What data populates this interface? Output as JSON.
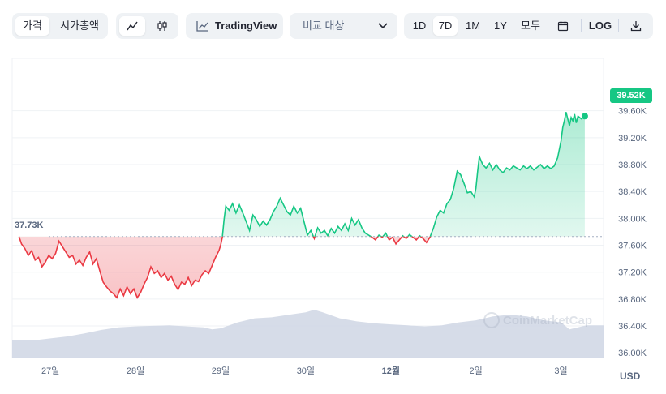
{
  "toolbar": {
    "type_tabs": [
      "가격",
      "시가총액"
    ],
    "active_type": "가격",
    "style_icons": [
      "line-chart-icon",
      "candlestick-icon"
    ],
    "tradingview_label": "TradingView",
    "compare_label": "비교 대상",
    "ranges": [
      "1D",
      "7D",
      "1M",
      "1Y",
      "모두"
    ],
    "active_range": "7D",
    "log_label": "LOG"
  },
  "price_tag": "39.52K",
  "ref_tag": "37.73K",
  "currency": "USD",
  "watermark": "CoinMarketCap",
  "colors": {
    "up": "#16c784",
    "down": "#ea3943",
    "volume": "#cfd6e4",
    "accent": "#16c784"
  },
  "chart_data": {
    "type": "line",
    "x_tick_labels": [
      "27일",
      "28일",
      "29일",
      "30일",
      "12월",
      "2일",
      "3일"
    ],
    "x_range": [
      26.55,
      33.5
    ],
    "y_ticks": [
      "36.00K",
      "36.40K",
      "36.80K",
      "37.20K",
      "37.60K",
      "38.00K",
      "38.40K",
      "38.80K",
      "39.20K",
      "39.60K"
    ],
    "ylim": [
      35.93,
      40.38
    ],
    "reference_price": 37.73,
    "last_price": 39.52,
    "price_series": [
      [
        26.63,
        37.73
      ],
      [
        26.66,
        37.62
      ],
      [
        26.7,
        37.55
      ],
      [
        26.74,
        37.45
      ],
      [
        26.78,
        37.52
      ],
      [
        26.82,
        37.38
      ],
      [
        26.86,
        37.42
      ],
      [
        26.9,
        37.28
      ],
      [
        26.94,
        37.35
      ],
      [
        26.98,
        37.45
      ],
      [
        27.02,
        37.4
      ],
      [
        27.06,
        37.48
      ],
      [
        27.1,
        37.66
      ],
      [
        27.14,
        37.58
      ],
      [
        27.18,
        37.5
      ],
      [
        27.22,
        37.42
      ],
      [
        27.26,
        37.45
      ],
      [
        27.3,
        37.32
      ],
      [
        27.34,
        37.38
      ],
      [
        27.38,
        37.3
      ],
      [
        27.42,
        37.42
      ],
      [
        27.46,
        37.5
      ],
      [
        27.5,
        37.32
      ],
      [
        27.54,
        37.4
      ],
      [
        27.58,
        37.22
      ],
      [
        27.62,
        37.05
      ],
      [
        27.66,
        36.98
      ],
      [
        27.7,
        36.92
      ],
      [
        27.74,
        36.88
      ],
      [
        27.78,
        36.82
      ],
      [
        27.82,
        36.95
      ],
      [
        27.86,
        36.85
      ],
      [
        27.9,
        36.98
      ],
      [
        27.94,
        36.88
      ],
      [
        27.98,
        36.95
      ],
      [
        28.02,
        36.82
      ],
      [
        28.06,
        36.9
      ],
      [
        28.1,
        37.02
      ],
      [
        28.14,
        37.12
      ],
      [
        28.18,
        37.28
      ],
      [
        28.22,
        37.18
      ],
      [
        28.26,
        37.22
      ],
      [
        28.3,
        37.12
      ],
      [
        28.34,
        37.18
      ],
      [
        28.38,
        37.08
      ],
      [
        28.42,
        37.14
      ],
      [
        28.46,
        37.02
      ],
      [
        28.5,
        36.94
      ],
      [
        28.54,
        37.05
      ],
      [
        28.58,
        37.02
      ],
      [
        28.62,
        37.12
      ],
      [
        28.66,
        37.0
      ],
      [
        28.7,
        37.08
      ],
      [
        28.74,
        37.06
      ],
      [
        28.78,
        37.16
      ],
      [
        28.82,
        37.22
      ],
      [
        28.86,
        37.18
      ],
      [
        28.9,
        37.3
      ],
      [
        28.94,
        37.42
      ],
      [
        28.98,
        37.52
      ],
      [
        29.0,
        37.6
      ],
      [
        29.02,
        37.72
      ],
      [
        29.04,
        37.98
      ],
      [
        29.06,
        38.18
      ],
      [
        29.1,
        38.12
      ],
      [
        29.14,
        38.22
      ],
      [
        29.18,
        38.08
      ],
      [
        29.22,
        38.2
      ],
      [
        29.26,
        38.08
      ],
      [
        29.3,
        37.95
      ],
      [
        29.34,
        37.82
      ],
      [
        29.38,
        38.05
      ],
      [
        29.42,
        37.98
      ],
      [
        29.46,
        37.88
      ],
      [
        29.5,
        37.96
      ],
      [
        29.54,
        37.9
      ],
      [
        29.58,
        37.98
      ],
      [
        29.62,
        38.1
      ],
      [
        29.66,
        38.18
      ],
      [
        29.7,
        38.3
      ],
      [
        29.74,
        38.2
      ],
      [
        29.78,
        38.1
      ],
      [
        29.82,
        38.05
      ],
      [
        29.86,
        38.18
      ],
      [
        29.9,
        38.08
      ],
      [
        29.94,
        38.15
      ],
      [
        29.98,
        37.95
      ],
      [
        30.02,
        37.75
      ],
      [
        30.06,
        37.82
      ],
      [
        30.1,
        37.7
      ],
      [
        30.14,
        37.86
      ],
      [
        30.18,
        37.78
      ],
      [
        30.22,
        37.82
      ],
      [
        30.26,
        37.74
      ],
      [
        30.3,
        37.85
      ],
      [
        30.34,
        37.78
      ],
      [
        30.38,
        37.88
      ],
      [
        30.42,
        37.82
      ],
      [
        30.46,
        37.92
      ],
      [
        30.5,
        37.82
      ],
      [
        30.54,
        38.0
      ],
      [
        30.58,
        37.9
      ],
      [
        30.62,
        37.98
      ],
      [
        30.66,
        37.86
      ],
      [
        30.7,
        37.78
      ],
      [
        30.74,
        37.75
      ],
      [
        30.78,
        37.72
      ],
      [
        30.82,
        37.68
      ],
      [
        30.86,
        37.75
      ],
      [
        30.9,
        37.72
      ],
      [
        30.94,
        37.78
      ],
      [
        30.98,
        37.68
      ],
      [
        31.02,
        37.72
      ],
      [
        31.06,
        37.62
      ],
      [
        31.1,
        37.68
      ],
      [
        31.14,
        37.74
      ],
      [
        31.18,
        37.7
      ],
      [
        31.22,
        37.76
      ],
      [
        31.26,
        37.72
      ],
      [
        31.3,
        37.68
      ],
      [
        31.34,
        37.74
      ],
      [
        31.38,
        37.7
      ],
      [
        31.42,
        37.64
      ],
      [
        31.46,
        37.72
      ],
      [
        31.5,
        37.85
      ],
      [
        31.54,
        38.02
      ],
      [
        31.58,
        38.12
      ],
      [
        31.62,
        38.08
      ],
      [
        31.66,
        38.22
      ],
      [
        31.7,
        38.28
      ],
      [
        31.74,
        38.45
      ],
      [
        31.78,
        38.7
      ],
      [
        31.82,
        38.65
      ],
      [
        31.86,
        38.52
      ],
      [
        31.9,
        38.38
      ],
      [
        31.94,
        38.4
      ],
      [
        31.98,
        38.32
      ],
      [
        32.0,
        38.45
      ],
      [
        32.02,
        38.7
      ],
      [
        32.04,
        38.92
      ],
      [
        32.08,
        38.8
      ],
      [
        32.12,
        38.75
      ],
      [
        32.16,
        38.82
      ],
      [
        32.2,
        38.72
      ],
      [
        32.24,
        38.8
      ],
      [
        32.28,
        38.72
      ],
      [
        32.32,
        38.68
      ],
      [
        32.36,
        38.75
      ],
      [
        32.4,
        38.72
      ],
      [
        32.44,
        38.78
      ],
      [
        32.48,
        38.75
      ],
      [
        32.52,
        38.72
      ],
      [
        32.56,
        38.78
      ],
      [
        32.6,
        38.74
      ],
      [
        32.64,
        38.78
      ],
      [
        32.68,
        38.72
      ],
      [
        32.72,
        38.76
      ],
      [
        32.76,
        38.8
      ],
      [
        32.8,
        38.74
      ],
      [
        32.84,
        38.78
      ],
      [
        32.88,
        38.74
      ],
      [
        32.92,
        38.78
      ],
      [
        32.96,
        38.9
      ],
      [
        33.0,
        39.15
      ],
      [
        33.02,
        39.35
      ],
      [
        33.04,
        39.45
      ],
      [
        33.06,
        39.58
      ],
      [
        33.08,
        39.48
      ],
      [
        33.1,
        39.38
      ],
      [
        33.12,
        39.5
      ],
      [
        33.14,
        39.45
      ],
      [
        33.16,
        39.55
      ],
      [
        33.18,
        39.42
      ],
      [
        33.2,
        39.52
      ],
      [
        33.24,
        39.48
      ],
      [
        33.28,
        39.52
      ]
    ],
    "volume_series": [
      [
        26.55,
        0.34
      ],
      [
        26.8,
        0.34
      ],
      [
        27.0,
        0.38
      ],
      [
        27.2,
        0.42
      ],
      [
        27.4,
        0.48
      ],
      [
        27.6,
        0.55
      ],
      [
        27.8,
        0.6
      ],
      [
        28.0,
        0.62
      ],
      [
        28.2,
        0.63
      ],
      [
        28.4,
        0.64
      ],
      [
        28.6,
        0.62
      ],
      [
        28.8,
        0.6
      ],
      [
        28.9,
        0.56
      ],
      [
        29.0,
        0.58
      ],
      [
        29.2,
        0.7
      ],
      [
        29.4,
        0.78
      ],
      [
        29.6,
        0.8
      ],
      [
        29.8,
        0.85
      ],
      [
        30.0,
        0.9
      ],
      [
        30.1,
        0.95
      ],
      [
        30.2,
        0.9
      ],
      [
        30.4,
        0.78
      ],
      [
        30.6,
        0.72
      ],
      [
        30.8,
        0.68
      ],
      [
        31.0,
        0.66
      ],
      [
        31.2,
        0.64
      ],
      [
        31.4,
        0.62
      ],
      [
        31.6,
        0.64
      ],
      [
        31.8,
        0.7
      ],
      [
        32.0,
        0.74
      ],
      [
        32.2,
        0.82
      ],
      [
        32.4,
        0.85
      ],
      [
        32.6,
        0.82
      ],
      [
        32.8,
        0.74
      ],
      [
        33.0,
        0.7
      ],
      [
        33.1,
        0.56
      ],
      [
        33.2,
        0.6
      ],
      [
        33.3,
        0.64
      ],
      [
        33.5,
        0.64
      ]
    ],
    "volume_unit": "relative"
  }
}
